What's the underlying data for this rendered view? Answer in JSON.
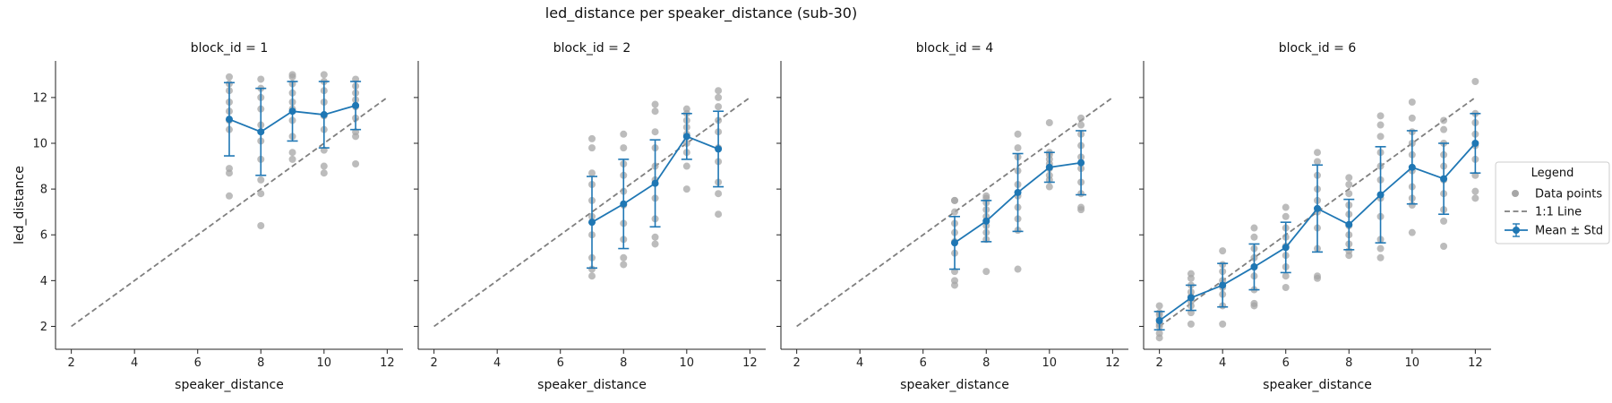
{
  "title": "led_distance per speaker_distance (sub-30)",
  "legend": {
    "title": "Legend",
    "placement": "right-center",
    "entries": [
      {
        "label": "Data points",
        "color": "#a6a6a6"
      },
      {
        "label": "1:1 Line",
        "color": "#7f7f7f"
      },
      {
        "label": "Mean ± Std",
        "color": "#1f77b4"
      }
    ]
  },
  "colors": {
    "points": "#a6a6a6",
    "identity": "#7f7f7f",
    "mean": "#1f77b4",
    "axis": "#222222"
  },
  "chart_data": [
    {
      "type": "scatter",
      "title": "block_id = 1",
      "xlabel": "speaker_distance",
      "ylabel": "led_distance",
      "xlim": [
        1.5,
        12.5
      ],
      "ylim": [
        1.0,
        13.6
      ],
      "xticks": [
        2,
        4,
        6,
        8,
        10,
        12
      ],
      "yticks": [
        2,
        4,
        6,
        8,
        10,
        12
      ],
      "identity_line": [
        [
          2,
          2
        ],
        [
          12,
          12
        ]
      ],
      "points": [
        [
          7,
          7.7
        ],
        [
          7,
          8.7
        ],
        [
          7,
          8.9
        ],
        [
          7,
          10.6
        ],
        [
          7,
          11.0
        ],
        [
          7,
          11.4
        ],
        [
          7,
          11.8
        ],
        [
          7,
          12.3
        ],
        [
          7,
          12.6
        ],
        [
          7,
          12.9
        ],
        [
          8,
          6.4
        ],
        [
          8,
          7.8
        ],
        [
          8,
          8.4
        ],
        [
          8,
          9.3
        ],
        [
          8,
          10.1
        ],
        [
          8,
          10.8
        ],
        [
          8,
          11.5
        ],
        [
          8,
          12.0
        ],
        [
          8,
          12.4
        ],
        [
          8,
          12.8
        ],
        [
          9,
          9.3
        ],
        [
          9,
          9.6
        ],
        [
          9,
          10.3
        ],
        [
          9,
          11.0
        ],
        [
          9,
          11.5
        ],
        [
          9,
          11.8
        ],
        [
          9,
          12.2
        ],
        [
          9,
          12.6
        ],
        [
          9,
          12.9
        ],
        [
          9,
          13.0
        ],
        [
          10,
          8.7
        ],
        [
          10,
          9.0
        ],
        [
          10,
          9.7
        ],
        [
          10,
          10.6
        ],
        [
          10,
          11.2
        ],
        [
          10,
          11.8
        ],
        [
          10,
          12.3
        ],
        [
          10,
          12.7
        ],
        [
          10,
          13.0
        ],
        [
          11,
          9.1
        ],
        [
          11,
          10.3
        ],
        [
          11,
          10.5
        ],
        [
          11,
          11.1
        ],
        [
          11,
          11.6
        ],
        [
          11,
          11.9
        ],
        [
          11,
          12.2
        ],
        [
          11,
          12.5
        ],
        [
          11,
          12.8
        ]
      ],
      "mean": [
        {
          "x": 7,
          "y": 11.05,
          "std": 1.6
        },
        {
          "x": 8,
          "y": 10.5,
          "std": 1.9
        },
        {
          "x": 9,
          "y": 11.4,
          "std": 1.3
        },
        {
          "x": 10,
          "y": 11.25,
          "std": 1.45
        },
        {
          "x": 11,
          "y": 11.65,
          "std": 1.05
        }
      ]
    },
    {
      "type": "scatter",
      "title": "block_id = 2",
      "xlabel": "speaker_distance",
      "ylabel": "",
      "xlim": [
        1.5,
        12.5
      ],
      "ylim": [
        1.0,
        13.6
      ],
      "xticks": [
        2,
        4,
        6,
        8,
        10,
        12
      ],
      "yticks": [
        2,
        4,
        6,
        8,
        10,
        12
      ],
      "identity_line": [
        [
          2,
          2
        ],
        [
          12,
          12
        ]
      ],
      "points": [
        [
          7,
          4.2
        ],
        [
          7,
          4.5
        ],
        [
          7,
          5.0
        ],
        [
          7,
          6.0
        ],
        [
          7,
          6.8
        ],
        [
          7,
          7.5
        ],
        [
          7,
          8.2
        ],
        [
          7,
          8.7
        ],
        [
          7,
          9.8
        ],
        [
          7,
          10.2
        ],
        [
          8,
          4.7
        ],
        [
          8,
          5.0
        ],
        [
          8,
          5.8
        ],
        [
          8,
          6.5
        ],
        [
          8,
          7.3
        ],
        [
          8,
          7.9
        ],
        [
          8,
          8.6
        ],
        [
          8,
          9.1
        ],
        [
          8,
          9.8
        ],
        [
          8,
          10.4
        ],
        [
          9,
          5.6
        ],
        [
          9,
          5.9
        ],
        [
          9,
          6.7
        ],
        [
          9,
          7.6
        ],
        [
          9,
          8.4
        ],
        [
          9,
          9.0
        ],
        [
          9,
          9.8
        ],
        [
          9,
          10.5
        ],
        [
          9,
          11.4
        ],
        [
          9,
          11.7
        ],
        [
          10,
          8.0
        ],
        [
          10,
          9.0
        ],
        [
          10,
          9.6
        ],
        [
          10,
          10.0
        ],
        [
          10,
          10.4
        ],
        [
          10,
          10.7
        ],
        [
          10,
          11.0
        ],
        [
          10,
          11.3
        ],
        [
          10,
          11.5
        ],
        [
          11,
          6.9
        ],
        [
          11,
          7.8
        ],
        [
          11,
          8.3
        ],
        [
          11,
          9.2
        ],
        [
          11,
          9.8
        ],
        [
          11,
          10.5
        ],
        [
          11,
          11.0
        ],
        [
          11,
          11.6
        ],
        [
          11,
          12.0
        ],
        [
          11,
          12.3
        ]
      ],
      "mean": [
        {
          "x": 7,
          "y": 6.55,
          "std": 2.0
        },
        {
          "x": 8,
          "y": 7.35,
          "std": 1.95
        },
        {
          "x": 9,
          "y": 8.25,
          "std": 1.9
        },
        {
          "x": 10,
          "y": 10.3,
          "std": 1.0
        },
        {
          "x": 11,
          "y": 9.75,
          "std": 1.65
        }
      ]
    },
    {
      "type": "scatter",
      "title": "block_id = 4",
      "xlabel": "speaker_distance",
      "ylabel": "",
      "xlim": [
        1.5,
        12.5
      ],
      "ylim": [
        1.0,
        13.6
      ],
      "xticks": [
        2,
        4,
        6,
        8,
        10,
        12
      ],
      "yticks": [
        2,
        4,
        6,
        8,
        10,
        12
      ],
      "identity_line": [
        [
          2,
          2
        ],
        [
          12,
          12
        ]
      ],
      "points": [
        [
          7,
          3.8
        ],
        [
          7,
          4.0
        ],
        [
          7,
          4.4
        ],
        [
          7,
          5.2
        ],
        [
          7,
          5.7
        ],
        [
          7,
          6.1
        ],
        [
          7,
          6.5
        ],
        [
          7,
          7.0
        ],
        [
          7,
          7.5
        ],
        [
          7,
          7.5
        ],
        [
          8,
          4.4
        ],
        [
          8,
          5.8
        ],
        [
          8,
          6.1
        ],
        [
          8,
          6.4
        ],
        [
          8,
          6.8
        ],
        [
          8,
          7.1
        ],
        [
          8,
          7.4
        ],
        [
          8,
          7.6
        ],
        [
          8,
          7.7
        ],
        [
          9,
          4.5
        ],
        [
          9,
          6.2
        ],
        [
          9,
          6.7
        ],
        [
          9,
          7.2
        ],
        [
          9,
          7.7
        ],
        [
          9,
          8.2
        ],
        [
          9,
          8.8
        ],
        [
          9,
          9.4
        ],
        [
          9,
          9.8
        ],
        [
          9,
          10.4
        ],
        [
          10,
          8.1
        ],
        [
          10,
          8.4
        ],
        [
          10,
          8.6
        ],
        [
          10,
          8.9
        ],
        [
          10,
          9.1
        ],
        [
          10,
          9.3
        ],
        [
          10,
          9.5
        ],
        [
          10,
          9.6
        ],
        [
          10,
          10.9
        ],
        [
          11,
          7.1
        ],
        [
          11,
          7.2
        ],
        [
          11,
          7.8
        ],
        [
          11,
          8.3
        ],
        [
          11,
          8.9
        ],
        [
          11,
          9.4
        ],
        [
          11,
          9.9
        ],
        [
          11,
          10.4
        ],
        [
          11,
          10.8
        ],
        [
          11,
          11.1
        ]
      ],
      "mean": [
        {
          "x": 7,
          "y": 5.65,
          "std": 1.15
        },
        {
          "x": 8,
          "y": 6.6,
          "std": 0.9
        },
        {
          "x": 9,
          "y": 7.85,
          "std": 1.7
        },
        {
          "x": 10,
          "y": 8.95,
          "std": 0.65
        },
        {
          "x": 11,
          "y": 9.15,
          "std": 1.4
        }
      ]
    },
    {
      "type": "scatter",
      "title": "block_id = 6",
      "xlabel": "speaker_distance",
      "ylabel": "",
      "xlim": [
        1.5,
        12.5
      ],
      "ylim": [
        1.0,
        13.6
      ],
      "xticks": [
        2,
        4,
        6,
        8,
        10,
        12
      ],
      "yticks": [
        2,
        4,
        6,
        8,
        10,
        12
      ],
      "identity_line": [
        [
          2,
          2
        ],
        [
          12,
          12
        ]
      ],
      "points": [
        [
          2,
          1.5
        ],
        [
          2,
          1.7
        ],
        [
          2,
          2.0
        ],
        [
          2,
          2.1
        ],
        [
          2,
          2.3
        ],
        [
          2,
          2.5
        ],
        [
          2,
          2.6
        ],
        [
          2,
          2.9
        ],
        [
          3,
          2.1
        ],
        [
          3,
          2.6
        ],
        [
          3,
          2.9
        ],
        [
          3,
          3.1
        ],
        [
          3,
          3.3
        ],
        [
          3,
          3.5
        ],
        [
          3,
          3.8
        ],
        [
          3,
          4.1
        ],
        [
          3,
          4.3
        ],
        [
          4,
          2.1
        ],
        [
          4,
          2.9
        ],
        [
          4,
          3.4
        ],
        [
          4,
          3.7
        ],
        [
          4,
          4.0
        ],
        [
          4,
          4.4
        ],
        [
          4,
          4.7
        ],
        [
          4,
          5.3
        ],
        [
          5,
          2.9
        ],
        [
          5,
          3.0
        ],
        [
          5,
          3.6
        ],
        [
          5,
          4.2
        ],
        [
          5,
          4.6
        ],
        [
          5,
          5.0
        ],
        [
          5,
          5.4
        ],
        [
          5,
          5.9
        ],
        [
          5,
          6.3
        ],
        [
          6,
          3.7
        ],
        [
          6,
          4.2
        ],
        [
          6,
          4.6
        ],
        [
          6,
          5.1
        ],
        [
          6,
          5.5
        ],
        [
          6,
          5.9
        ],
        [
          6,
          6.3
        ],
        [
          6,
          6.8
        ],
        [
          6,
          7.2
        ],
        [
          7,
          4.1
        ],
        [
          7,
          4.2
        ],
        [
          7,
          5.4
        ],
        [
          7,
          6.3
        ],
        [
          7,
          7.0
        ],
        [
          7,
          7.5
        ],
        [
          7,
          8.0
        ],
        [
          7,
          8.6
        ],
        [
          7,
          9.2
        ],
        [
          7,
          9.6
        ],
        [
          8,
          5.1
        ],
        [
          8,
          5.3
        ],
        [
          8,
          5.6
        ],
        [
          8,
          6.0
        ],
        [
          8,
          6.4
        ],
        [
          8,
          6.9
        ],
        [
          8,
          7.3
        ],
        [
          8,
          7.8
        ],
        [
          8,
          8.2
        ],
        [
          8,
          8.5
        ],
        [
          9,
          5.0
        ],
        [
          9,
          5.4
        ],
        [
          9,
          5.8
        ],
        [
          9,
          6.8
        ],
        [
          9,
          7.6
        ],
        [
          9,
          8.4
        ],
        [
          9,
          9.0
        ],
        [
          9,
          9.6
        ],
        [
          9,
          10.3
        ],
        [
          9,
          10.8
        ],
        [
          9,
          11.2
        ],
        [
          10,
          6.1
        ],
        [
          10,
          7.3
        ],
        [
          10,
          7.6
        ],
        [
          10,
          8.1
        ],
        [
          10,
          8.8
        ],
        [
          10,
          9.5
        ],
        [
          10,
          10.0
        ],
        [
          10,
          10.5
        ],
        [
          10,
          11.1
        ],
        [
          10,
          11.8
        ],
        [
          11,
          5.5
        ],
        [
          11,
          6.6
        ],
        [
          11,
          7.1
        ],
        [
          11,
          7.8
        ],
        [
          11,
          8.4
        ],
        [
          11,
          9.0
        ],
        [
          11,
          9.5
        ],
        [
          11,
          10.0
        ],
        [
          11,
          10.6
        ],
        [
          11,
          11.0
        ],
        [
          12,
          7.6
        ],
        [
          12,
          7.9
        ],
        [
          12,
          8.6
        ],
        [
          12,
          9.3
        ],
        [
          12,
          9.9
        ],
        [
          12,
          10.4
        ],
        [
          12,
          10.9
        ],
        [
          12,
          11.3
        ],
        [
          12,
          12.7
        ]
      ],
      "mean": [
        {
          "x": 2,
          "y": 2.25,
          "std": 0.4
        },
        {
          "x": 3,
          "y": 3.25,
          "std": 0.55
        },
        {
          "x": 4,
          "y": 3.8,
          "std": 0.95
        },
        {
          "x": 5,
          "y": 4.6,
          "std": 1.0
        },
        {
          "x": 6,
          "y": 5.45,
          "std": 1.1
        },
        {
          "x": 7,
          "y": 7.15,
          "std": 1.9
        },
        {
          "x": 8,
          "y": 6.45,
          "std": 1.1
        },
        {
          "x": 9,
          "y": 7.75,
          "std": 2.1
        },
        {
          "x": 10,
          "y": 8.95,
          "std": 1.6
        },
        {
          "x": 11,
          "y": 8.45,
          "std": 1.55
        },
        {
          "x": 12,
          "y": 10.0,
          "std": 1.3
        }
      ]
    }
  ]
}
